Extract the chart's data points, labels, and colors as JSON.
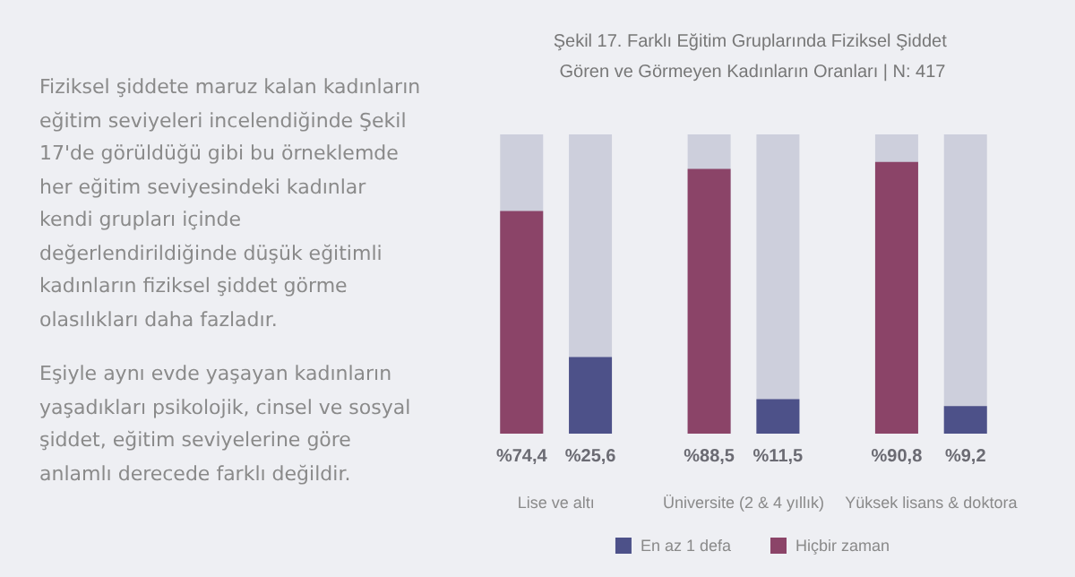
{
  "chart_data": {
    "type": "bar",
    "title": "Şekil 17. Farklı Eğitim Gruplarında Fiziksel Şiddet Gören ve Görmeyen Kadınların Oranları | N: 417",
    "annotations": [
      "Fiziksel şiddete maruz kalan kadınların eğitim seviyeleri incelendiğinde Şekil 17'de görüldüğü gibi bu örneklemde her eğitim seviyesindeki kadınlar kendi grupları içinde değerlendirildiğinde düşük eğitimli kadınların  fiziksel şiddet görme olasılıkları daha fazladır.",
      "Eşiyle aynı evde yaşayan kadınların yaşadıkları psikolojik, cinsel ve sosyal şiddet, eğitim seviyelerine göre anlamlı derecede farklı değildir."
    ],
    "categories": [
      "Lise ve altı",
      "Üniversite (2 & 4 yıllık)",
      "Yüksek lisans & doktora"
    ],
    "series": [
      {
        "name": "Hiçbir zaman",
        "color": "#8b4468",
        "values": [
          74.4,
          88.5,
          90.8
        ],
        "value_labels": [
          "%74,4",
          "%88,5",
          "%90,8"
        ]
      },
      {
        "name": "En az 1 defa",
        "color": "#4d5189",
        "values": [
          25.6,
          11.5,
          9.2
        ],
        "value_labels": [
          "%25,6",
          "%11,5",
          "%9,2"
        ]
      }
    ],
    "ylim": [
      0,
      100
    ],
    "legend": "bottom"
  }
}
